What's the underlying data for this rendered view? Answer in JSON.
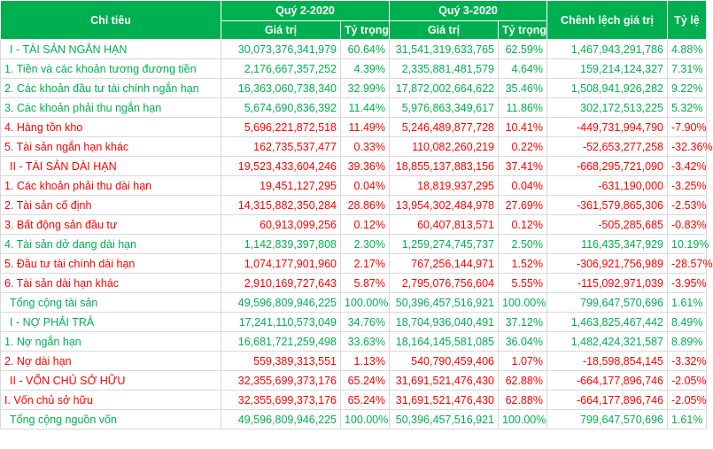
{
  "header": {
    "chi_tieu": "Chỉ tiêu",
    "q2": "Quý 2-2020",
    "q3": "Quý 3-2020",
    "gia_tri": "Giá trị",
    "ty_trong": "Tỷ trọng",
    "chenh_lech": "Chênh lệch giá trị",
    "ty_le": "Tỷ lệ"
  },
  "colors": {
    "header_bg": "#00b050",
    "positive": "#00b050",
    "negative": "#ff0000"
  },
  "rows": [
    {
      "label": "I - TÀI SẢN NGẮN HẠN",
      "q2_value": "30,073,376,341,979",
      "q2_share": "60.64%",
      "q3_value": "31,541,319,633,765",
      "q3_share": "62.59%",
      "diff": "1,467,943,291,786",
      "ratio": "4.88%",
      "tone": "green",
      "section": true
    },
    {
      "label": "1. Tiền và các khoản tương đương tiền",
      "q2_value": "2,176,667,357,252",
      "q2_share": "4.39%",
      "q3_value": "2,335,881,481,579",
      "q3_share": "4.64%",
      "diff": "159,214,124,327",
      "ratio": "7.31%",
      "tone": "green",
      "section": false
    },
    {
      "label": "2. Các khoản đầu tư tài chính ngắn hạn",
      "q2_value": "16,363,060,738,340",
      "q2_share": "32.99%",
      "q3_value": "17,872,002,664,622",
      "q3_share": "35.46%",
      "diff": "1,508,941,926,282",
      "ratio": "9.22%",
      "tone": "green",
      "section": false
    },
    {
      "label": "3. Các khoản phải thu ngắn hạn",
      "q2_value": "5,674,690,836,392",
      "q2_share": "11.44%",
      "q3_value": "5,976,863,349,617",
      "q3_share": "11.86%",
      "diff": "302,172,513,225",
      "ratio": "5.32%",
      "tone": "green",
      "section": false
    },
    {
      "label": "4. Hàng tồn kho",
      "q2_value": "5,696,221,872,518",
      "q2_share": "11.49%",
      "q3_value": "5,246,489,877,728",
      "q3_share": "10.41%",
      "diff": "-449,731,994,790",
      "ratio": "-7.90%",
      "tone": "red",
      "section": false
    },
    {
      "label": "5. Tài sản ngắn hạn khác",
      "q2_value": "162,735,537,477",
      "q2_share": "0.33%",
      "q3_value": "110,082,260,219",
      "q3_share": "0.22%",
      "diff": "-52,653,277,258",
      "ratio": "-32.36%",
      "tone": "red",
      "section": false
    },
    {
      "label": "II - TÀI SẢN DÀI HẠN",
      "q2_value": "19,523,433,604,246",
      "q2_share": "39.36%",
      "q3_value": "18,855,137,883,156",
      "q3_share": "37.41%",
      "diff": "-668,295,721,090",
      "ratio": "-3.42%",
      "tone": "red",
      "section": true
    },
    {
      "label": "1. Các khoản phải thu dài hạn",
      "q2_value": "19,451,127,295",
      "q2_share": "0.04%",
      "q3_value": "18,819,937,295",
      "q3_share": "0.04%",
      "diff": "-631,190,000",
      "ratio": "-3.25%",
      "tone": "red",
      "section": false
    },
    {
      "label": "2. Tài sản cố định",
      "q2_value": "14,315,882,350,284",
      "q2_share": "28.86%",
      "q3_value": "13,954,302,484,978",
      "q3_share": "27.69%",
      "diff": "-361,579,865,306",
      "ratio": "-2.53%",
      "tone": "red",
      "section": false
    },
    {
      "label": "3. Bất động sản đầu tư",
      "q2_value": "60,913,099,256",
      "q2_share": "0.12%",
      "q3_value": "60,407,813,571",
      "q3_share": "0.12%",
      "diff": "-505,285,685",
      "ratio": "-0.83%",
      "tone": "red",
      "section": false
    },
    {
      "label": "4. Tài sản dở dang dài hạn",
      "q2_value": "1,142,839,397,808",
      "q2_share": "2.30%",
      "q3_value": "1,259,274,745,737",
      "q3_share": "2.50%",
      "diff": "116,435,347,929",
      "ratio": "10.19%",
      "tone": "green",
      "section": false
    },
    {
      "label": "5. Đầu tư tài chính dài hạn",
      "q2_value": "1,074,177,901,960",
      "q2_share": "2.17%",
      "q3_value": "767,256,144,971",
      "q3_share": "1.52%",
      "diff": "-306,921,756,989",
      "ratio": "-28.57%",
      "tone": "red",
      "section": false
    },
    {
      "label": "6. Tài sản dài hạn khác",
      "q2_value": "2,910,169,727,643",
      "q2_share": "5.87%",
      "q3_value": "2,795,076,756,604",
      "q3_share": "5.55%",
      "diff": "-115,092,971,039",
      "ratio": "-3.95%",
      "tone": "red",
      "section": false
    },
    {
      "label": "Tổng cộng tài sản",
      "q2_value": "49,596,809,946,225",
      "q2_share": "100.00%",
      "q3_value": "50,396,457,516,921",
      "q3_share": "100.00%",
      "diff": "799,647,570,696",
      "ratio": "1.61%",
      "tone": "green",
      "section": true
    },
    {
      "label": "I - NỢ PHẢI TRẢ",
      "q2_value": "17,241,110,573,049",
      "q2_share": "34.76%",
      "q3_value": "18,704,936,040,491",
      "q3_share": "37.12%",
      "diff": "1,463,825,467,442",
      "ratio": "8.49%",
      "tone": "green",
      "section": true
    },
    {
      "label": "1. Nợ ngắn hạn",
      "q2_value": "16,681,721,259,498",
      "q2_share": "33.63%",
      "q3_value": "18,164,145,581,085",
      "q3_share": "36.04%",
      "diff": "1,482,424,321,587",
      "ratio": "8.89%",
      "tone": "green",
      "section": false
    },
    {
      "label": "2. Nợ dài hạn",
      "q2_value": "559,389,313,551",
      "q2_share": "1.13%",
      "q3_value": "540,790,459,406",
      "q3_share": "1.07%",
      "diff": "-18,598,854,145",
      "ratio": "-3.32%",
      "tone": "red",
      "section": false
    },
    {
      "label": "II - VỐN CHỦ SỞ HỮU",
      "q2_value": "32,355,699,373,176",
      "q2_share": "65.24%",
      "q3_value": "31,691,521,476,430",
      "q3_share": "62.88%",
      "diff": "-664,177,896,746",
      "ratio": "-2.05%",
      "tone": "red",
      "section": true
    },
    {
      "label": "I. Vốn chủ sở hữu",
      "q2_value": "32,355,699,373,176",
      "q2_share": "65.24%",
      "q3_value": "31,691,521,476,430",
      "q3_share": "62.88%",
      "diff": "-664,177,896,746",
      "ratio": "-2.05%",
      "tone": "red",
      "section": false
    },
    {
      "label": "Tổng cộng nguồn vốn",
      "q2_value": "49,596,809,946,225",
      "q2_share": "100.00%",
      "q3_value": "50,396,457,516,921",
      "q3_share": "100.00%",
      "diff": "799,647,570,696",
      "ratio": "1.61%",
      "tone": "green",
      "section": true
    }
  ]
}
